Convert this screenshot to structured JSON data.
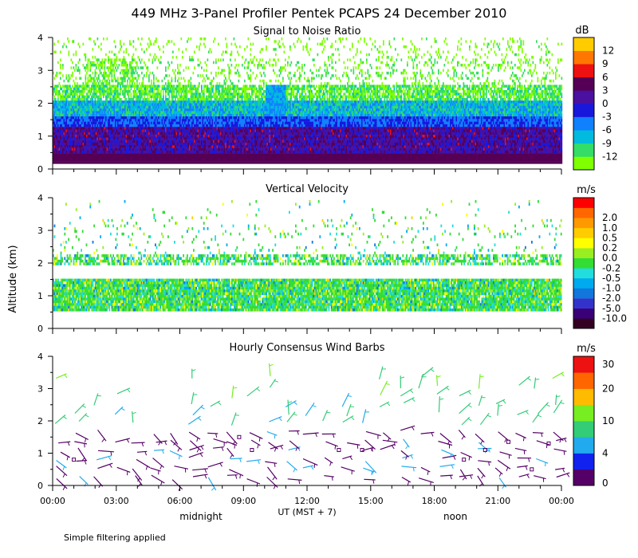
{
  "title": "449 MHz 3-Panel Profiler Pentek PCAPS 24 December 2010",
  "ylabel": "Altitude (km)",
  "xlabel": "UT  (MST + 7)",
  "midnight_label": "midnight",
  "noon_label": "noon",
  "footnote": "Simple filtering applied",
  "chart_data": [
    {
      "type": "heatmap",
      "title": "Signal to Noise Ratio",
      "unit": "dB",
      "ylim": [
        0,
        4
      ],
      "yticks": [
        "0",
        "1",
        "2",
        "3",
        "4"
      ],
      "xlim": [
        0,
        24
      ],
      "xticks": [
        "00:00",
        "03:00",
        "06:00",
        "09:00",
        "12:00",
        "15:00",
        "18:00",
        "21:00",
        "00:00"
      ],
      "colorbar": {
        "colors": [
          "#7fff00",
          "#33dd66",
          "#00bbdd",
          "#1180ff",
          "#1818dd",
          "#4a10a0",
          "#550055",
          "#ee1111",
          "#ff7700",
          "#ffcc00"
        ],
        "labels": [
          "-12",
          "-9",
          "-6",
          "-3",
          "0",
          "3",
          "6",
          "9",
          "12"
        ]
      }
    },
    {
      "type": "heatmap",
      "title": "Vertical Velocity",
      "unit": "m/s",
      "ylim": [
        0,
        4
      ],
      "yticks": [
        "0",
        "1",
        "2",
        "3",
        "4"
      ],
      "xlim": [
        0,
        24
      ],
      "colorbar": {
        "colors": [
          "#330022",
          "#3a0077",
          "#3333cc",
          "#1177dd",
          "#00aaee",
          "#22dddd",
          "#33dd33",
          "#99ee22",
          "#ffff00",
          "#ffcc00",
          "#ff9900",
          "#ff6600",
          "#ff0000"
        ],
        "labels": [
          "-10.0",
          "-5.0",
          "-2.0",
          "-1.0",
          "-0.5",
          "-0.2",
          "0.0",
          "0.2",
          "0.5",
          "1.0",
          "2.0"
        ]
      }
    },
    {
      "type": "scatter",
      "title": "Hourly Consensus Wind Barbs",
      "unit": "m/s",
      "ylim": [
        0,
        4
      ],
      "yticks": [
        "0",
        "1",
        "2",
        "3",
        "4"
      ],
      "xlim": [
        0,
        24
      ],
      "colorbar": {
        "colors": [
          "#550066",
          "#1122ee",
          "#22aaee",
          "#33cc77",
          "#77ee22",
          "#ffbb00",
          "#ff6600",
          "#ee1111"
        ],
        "labels": [
          "0",
          "4",
          "10",
          "20",
          "30"
        ]
      }
    }
  ]
}
